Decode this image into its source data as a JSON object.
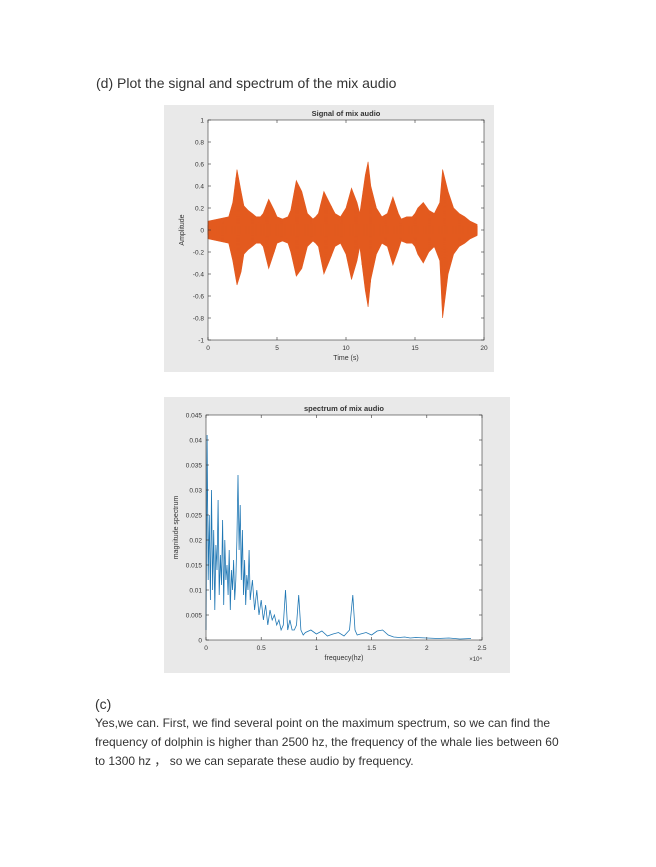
{
  "heading": "(d) Plot the signal and spectrum of the mix audio",
  "section_label": "(c)",
  "answer_text": "Yes,we can. First, we find several point on the maximum spectrum, so we can find the frequency of dolphin is higher than 2500 hz, the frequency of the whale lies between 60 to 1300 hz ， so we can separate these audio by frequency.",
  "colors": {
    "signal": "#e35a1f",
    "spectrum": "#1f77b4"
  },
  "chart_data": [
    {
      "type": "line",
      "title": "Signal of mix audio",
      "xlabel": "Time (s)",
      "ylabel": "Amplitude",
      "xlim": [
        0,
        20
      ],
      "ylim": [
        -1,
        1
      ],
      "xticks": [
        "0",
        "5",
        "10",
        "15",
        "20"
      ],
      "yticks": [
        "1",
        "0.8",
        "0.6",
        "0.4",
        "0.2",
        "0",
        "-0.2",
        "-0.4",
        "-0.6",
        "-0.8",
        "-1"
      ],
      "series": [
        {
          "x": [
            0,
            1.5,
            1.8,
            2.1,
            2.4,
            2.6,
            2.9,
            3.2,
            3.5,
            3.8,
            4.0,
            4.4,
            4.8,
            5.0,
            5.4,
            5.8,
            6.0,
            6.4,
            6.8,
            7.2,
            7.6,
            7.8,
            8.0,
            8.4,
            8.8,
            9.2,
            9.6,
            10.0,
            10.4,
            10.8,
            11.0,
            11.4,
            11.6,
            11.8,
            12.2,
            12.6,
            13.0,
            13.4,
            13.8,
            14.0,
            14.4,
            14.8,
            15.0,
            15.2,
            15.6,
            16.0,
            16.4,
            16.8,
            17.0,
            17.4,
            17.8,
            18.2,
            18.6,
            19.0,
            19.5
          ],
          "upper": [
            0.08,
            0.12,
            0.25,
            0.55,
            0.35,
            0.22,
            0.18,
            0.15,
            0.12,
            0.12,
            0.15,
            0.28,
            0.18,
            0.12,
            0.1,
            0.12,
            0.18,
            0.45,
            0.35,
            0.15,
            0.1,
            0.12,
            0.15,
            0.35,
            0.25,
            0.15,
            0.12,
            0.2,
            0.38,
            0.25,
            0.15,
            0.5,
            0.62,
            0.4,
            0.2,
            0.12,
            0.15,
            0.3,
            0.15,
            0.1,
            0.12,
            0.12,
            0.15,
            0.2,
            0.25,
            0.18,
            0.15,
            0.25,
            0.55,
            0.35,
            0.2,
            0.15,
            0.12,
            0.08,
            0.05
          ],
          "lower": [
            -0.08,
            -0.12,
            -0.28,
            -0.5,
            -0.38,
            -0.22,
            -0.18,
            -0.15,
            -0.12,
            -0.12,
            -0.15,
            -0.35,
            -0.2,
            -0.12,
            -0.1,
            -0.12,
            -0.2,
            -0.42,
            -0.35,
            -0.15,
            -0.1,
            -0.12,
            -0.15,
            -0.4,
            -0.28,
            -0.15,
            -0.12,
            -0.22,
            -0.45,
            -0.28,
            -0.15,
            -0.55,
            -0.7,
            -0.45,
            -0.22,
            -0.12,
            -0.15,
            -0.32,
            -0.18,
            -0.1,
            -0.12,
            -0.12,
            -0.15,
            -0.22,
            -0.3,
            -0.2,
            -0.15,
            -0.28,
            -0.8,
            -0.4,
            -0.22,
            -0.15,
            -0.12,
            -0.08,
            -0.05
          ]
        }
      ]
    },
    {
      "type": "line",
      "title": "spectrum of mix audio",
      "xlabel": "frequecy(hz)",
      "ylabel": "magnitude spectrum",
      "x_exponent_label": "×10⁴",
      "xlim": [
        0,
        25000
      ],
      "ylim": [
        0,
        0.045
      ],
      "xticks": [
        "0",
        "0.5",
        "1",
        "1.5",
        "2",
        "2.5"
      ],
      "yticks": [
        "0.045",
        "0.04",
        "0.035",
        "0.03",
        "0.025",
        "0.02",
        "0.015",
        "0.01",
        "0.005",
        "0"
      ],
      "series": [
        {
          "x": [
            0,
            100,
            200,
            300,
            400,
            500,
            600,
            700,
            800,
            900,
            1000,
            1100,
            1200,
            1300,
            1400,
            1500,
            1600,
            1700,
            1800,
            1900,
            2000,
            2100,
            2200,
            2300,
            2400,
            2500,
            2600,
            2700,
            2800,
            2900,
            3000,
            3100,
            3200,
            3300,
            3400,
            3500,
            3600,
            3700,
            3800,
            3900,
            4000,
            4200,
            4400,
            4600,
            4800,
            5000,
            5200,
            5400,
            5600,
            5800,
            6000,
            6200,
            6400,
            6600,
            6800,
            7000,
            7200,
            7400,
            7600,
            7800,
            8000,
            8200,
            8400,
            8600,
            8800,
            9000,
            9500,
            10000,
            10500,
            11000,
            11500,
            12000,
            12500,
            13000,
            13300,
            13500,
            13700,
            14000,
            14500,
            15000,
            15500,
            16000,
            16500,
            17000,
            17500,
            18000,
            18500,
            19000,
            20000,
            21000,
            22000,
            23000,
            24000
          ],
          "values": [
            0.002,
            0.041,
            0.012,
            0.025,
            0.008,
            0.03,
            0.01,
            0.022,
            0.006,
            0.019,
            0.014,
            0.028,
            0.009,
            0.017,
            0.011,
            0.024,
            0.007,
            0.02,
            0.012,
            0.015,
            0.009,
            0.018,
            0.006,
            0.014,
            0.01,
            0.016,
            0.008,
            0.012,
            0.02,
            0.033,
            0.018,
            0.027,
            0.012,
            0.022,
            0.009,
            0.016,
            0.007,
            0.013,
            0.01,
            0.018,
            0.008,
            0.012,
            0.006,
            0.01,
            0.005,
            0.008,
            0.004,
            0.007,
            0.003,
            0.006,
            0.004,
            0.005,
            0.003,
            0.004,
            0.002,
            0.003,
            0.01,
            0.002,
            0.004,
            0.002,
            0.002,
            0.003,
            0.009,
            0.002,
            0.001,
            0.0015,
            0.002,
            0.0012,
            0.0018,
            0.0008,
            0.0012,
            0.0015,
            0.0008,
            0.002,
            0.009,
            0.002,
            0.001,
            0.0012,
            0.0015,
            0.001,
            0.0018,
            0.002,
            0.001,
            0.0006,
            0.0005,
            0.0006,
            0.0004,
            0.0005,
            0.0004,
            0.0003,
            0.0004,
            0.0002,
            0.0003
          ]
        }
      ]
    }
  ]
}
